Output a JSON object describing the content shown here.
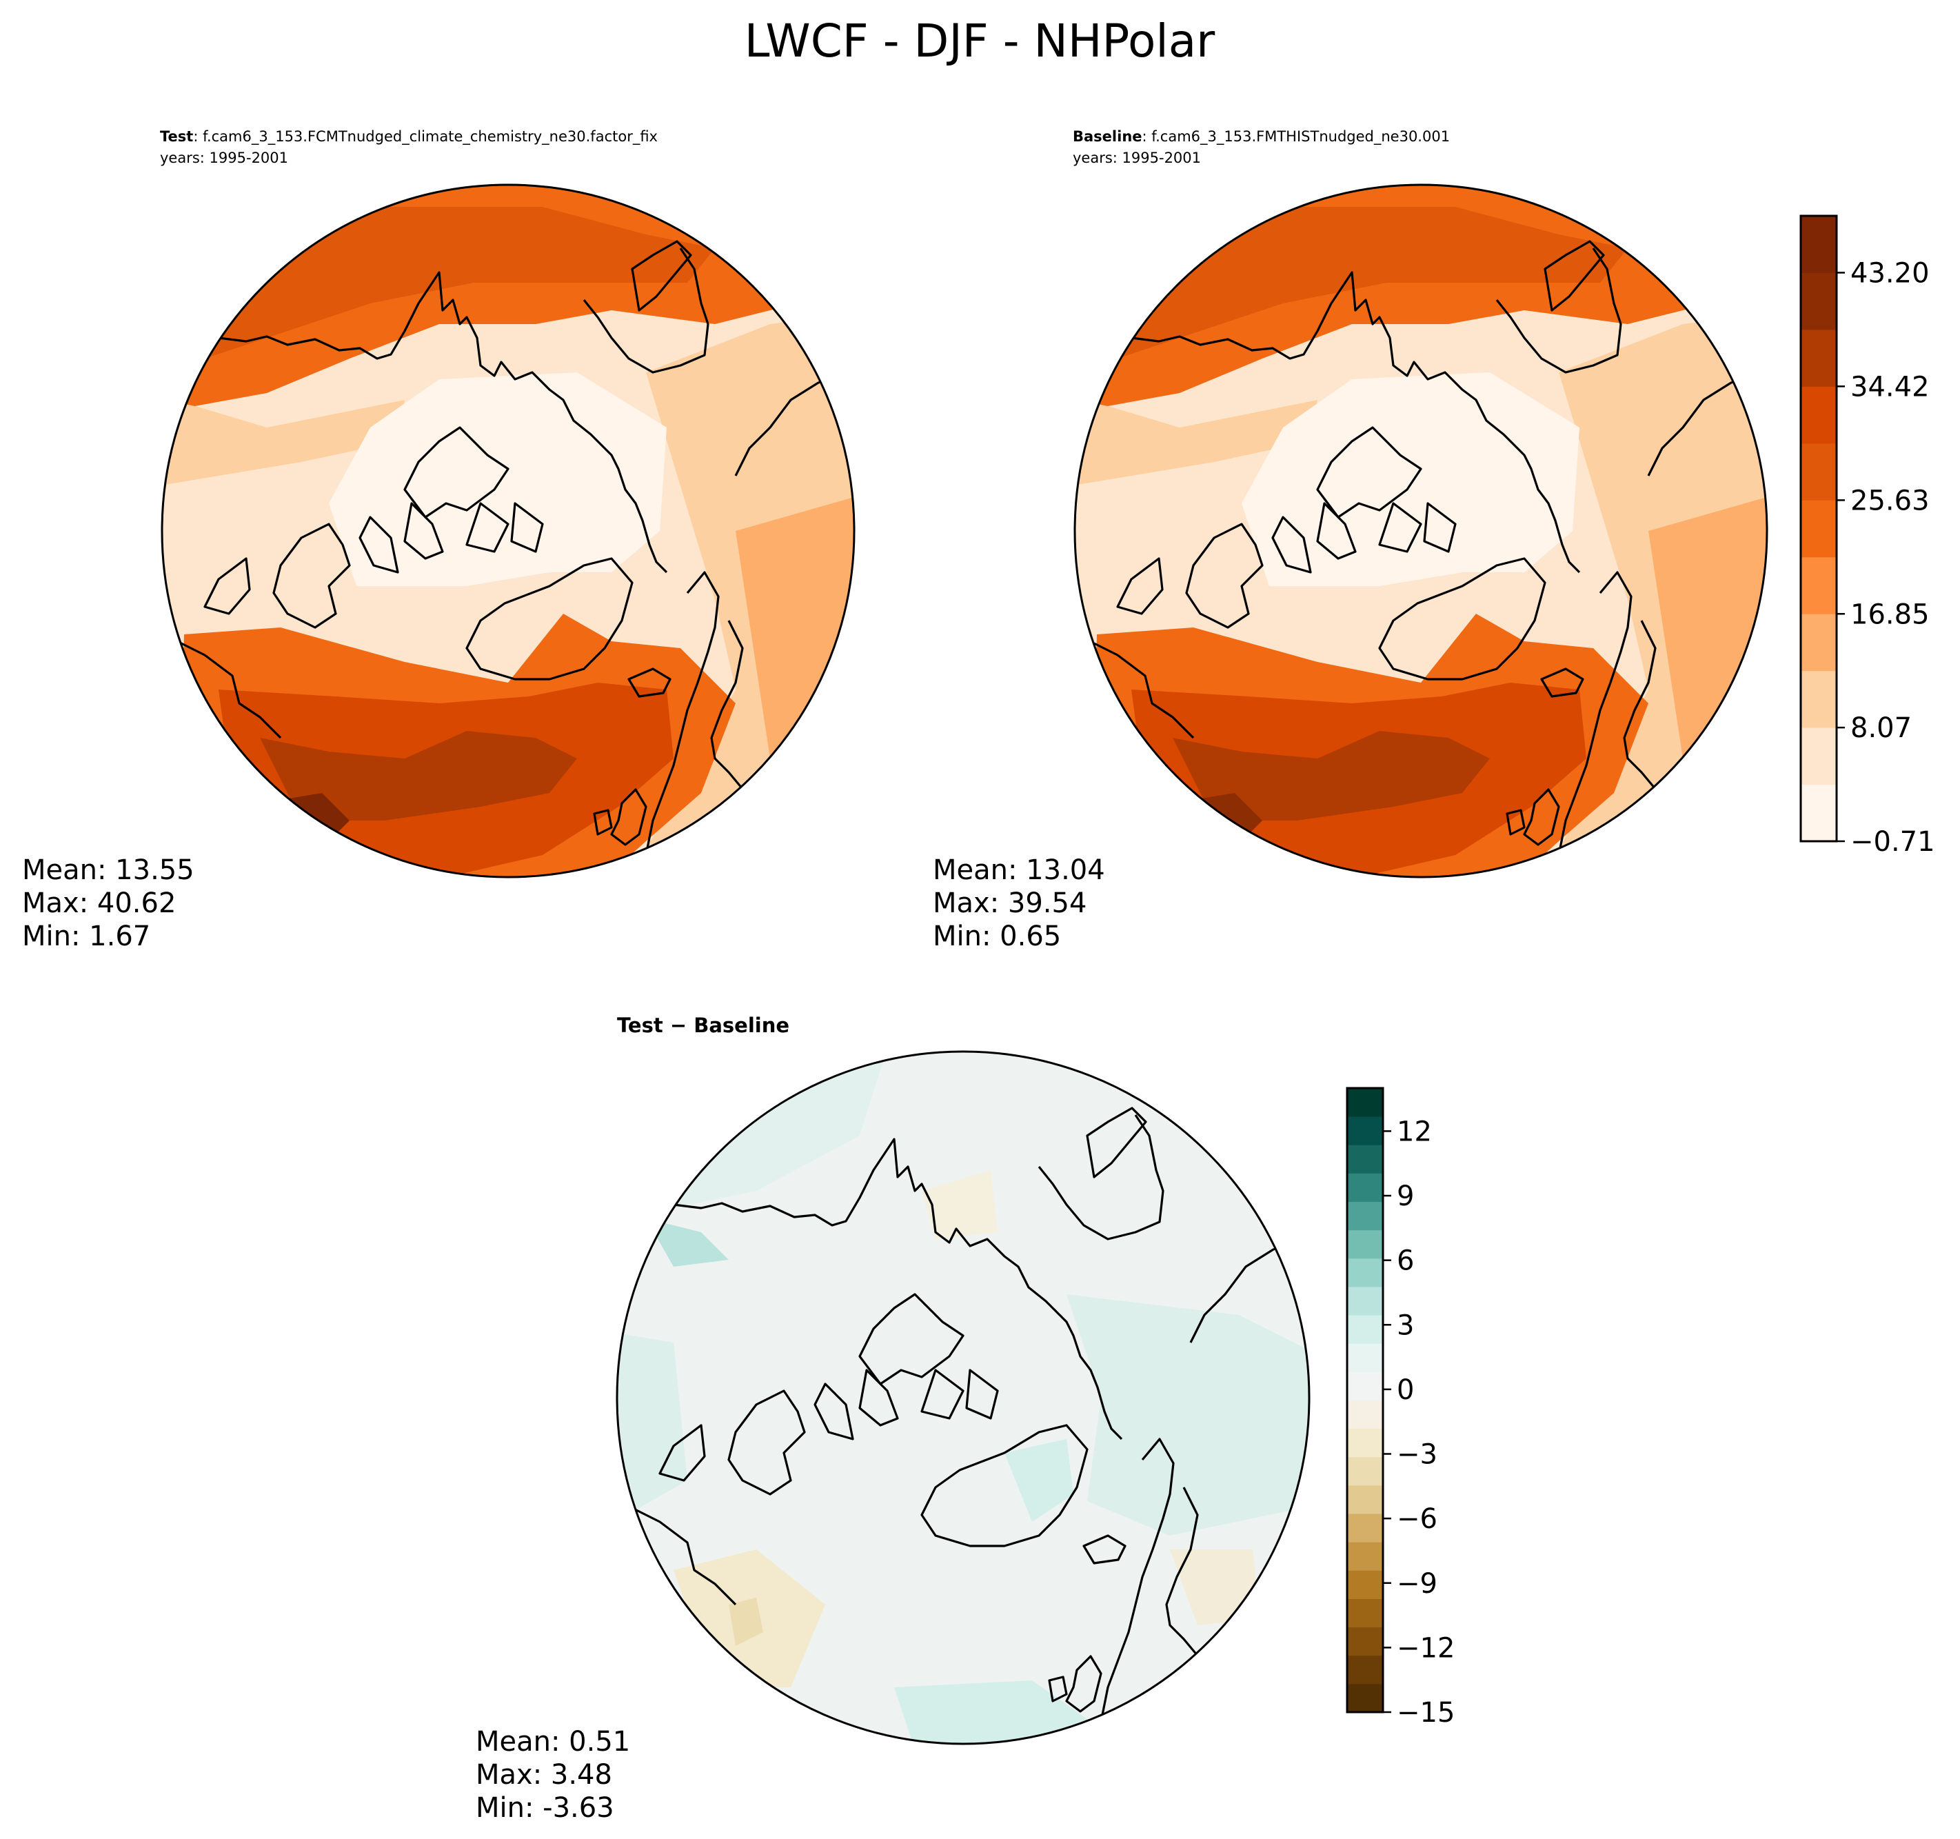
{
  "figure": {
    "title": "LWCF - DJF - NHPolar"
  },
  "panels": {
    "test": {
      "label_bold": "Test",
      "label_rest": ": f.cam6_3_153.FCMTnudged_climate_chemistry_ne30.factor_fix",
      "years": "years: 1995-2001",
      "mean": "Mean: 13.55",
      "max": "Max: 40.62",
      "min": "Min:  1.67"
    },
    "baseline": {
      "label_bold": "Baseline",
      "label_rest": ": f.cam6_3_153.FMTHISTnudged_ne30.001",
      "years": "years: 1995-2001",
      "mean": "Mean: 13.04",
      "max": "Max: 39.54",
      "min": "Min:  0.65"
    },
    "diff": {
      "label": "Test − Baseline",
      "mean": "Mean:  0.51",
      "max": "Max:  3.48",
      "min": "Min: -3.63"
    }
  },
  "colorbars": {
    "main": {
      "tick_labels": [
        "−0.71",
        "8.07",
        "16.85",
        "25.63",
        "34.42",
        "43.20"
      ],
      "tick_values": [
        -0.71,
        8.07,
        16.85,
        25.63,
        34.42,
        43.2
      ],
      "range": [
        -0.71,
        47.59
      ],
      "colors": [
        "#fff5eb",
        "#fee6ce",
        "#fdd0a2",
        "#fdae6b",
        "#fd8d3c",
        "#f16913",
        "#e0590b",
        "#d94801",
        "#b13c03",
        "#8c2d04",
        "#7f2704"
      ]
    },
    "diff": {
      "tick_labels": [
        "12",
        "9",
        "6",
        "3",
        "0",
        "−3",
        "−6",
        "−9",
        "−12",
        "−15"
      ],
      "tick_values": [
        12,
        9,
        6,
        3,
        0,
        -3,
        -6,
        -9,
        -12,
        -15
      ],
      "range": [
        -15,
        14
      ],
      "colors": [
        "#543005",
        "#6b3d07",
        "#85500b",
        "#9c6515",
        "#b47b25",
        "#c59543",
        "#d5ae68",
        "#e2c98f",
        "#ecdcb1",
        "#f3e9cc",
        "#f5f0e3",
        "#f1f4f3",
        "#e8f4f1",
        "#d4eeea",
        "#b9e3dc",
        "#97d3c9",
        "#73bdb1",
        "#4fa298",
        "#2f867d",
        "#17695f",
        "#05504a",
        "#003c30"
      ]
    }
  },
  "chart_data": [
    {
      "type": "heatmap",
      "title": "LWCF - DJF - NHPolar",
      "name": "Test",
      "projection": "North Polar Stereographic",
      "case": "f.cam6_3_153.FCMTnudged_climate_chemistry_ne30.factor_fix",
      "years": "1995-2001",
      "stats": {
        "mean": 13.55,
        "max": 40.62,
        "min": 1.67
      },
      "colorbar": {
        "ticks": [
          -0.71,
          8.07,
          16.85,
          25.63,
          34.42,
          43.2
        ],
        "cmap": "Oranges"
      }
    },
    {
      "type": "heatmap",
      "name": "Baseline",
      "projection": "North Polar Stereographic",
      "case": "f.cam6_3_153.FMTHISTnudged_ne30.001",
      "years": "1995-2001",
      "stats": {
        "mean": 13.04,
        "max": 39.54,
        "min": 0.65
      },
      "colorbar": {
        "ticks": [
          -0.71,
          8.07,
          16.85,
          25.63,
          34.42,
          43.2
        ],
        "cmap": "Oranges"
      }
    },
    {
      "type": "heatmap",
      "name": "Test − Baseline",
      "projection": "North Polar Stereographic",
      "stats": {
        "mean": 0.51,
        "max": 3.48,
        "min": -3.63
      },
      "colorbar": {
        "ticks": [
          -15,
          -12,
          -9,
          -6,
          -3,
          0,
          3,
          6,
          9,
          12
        ],
        "cmap": "BrBG"
      }
    }
  ]
}
